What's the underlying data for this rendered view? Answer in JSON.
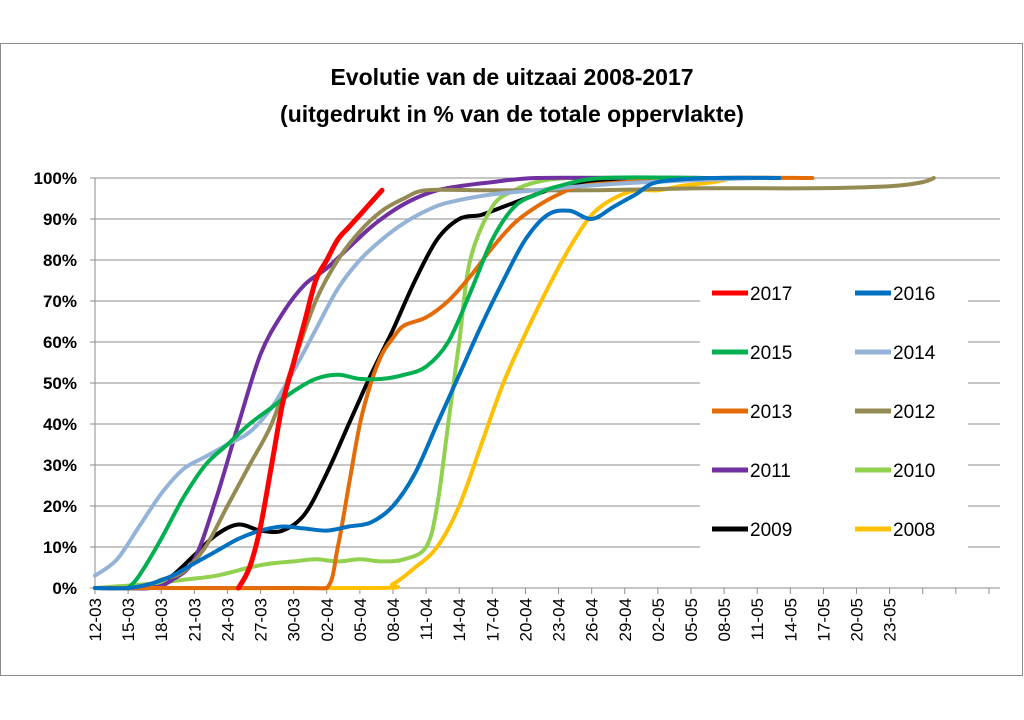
{
  "chart_data": {
    "type": "line",
    "title": "Evolutie van de uitzaai 2008-2017",
    "subtitle": "(uitgedrukt in % van de totale oppervlakte)",
    "xlabel": "",
    "ylabel": "",
    "x_tick_labels": [
      "12-03",
      "15-03",
      "18-03",
      "21-03",
      "24-03",
      "27-03",
      "30-03",
      "02-04",
      "05-04",
      "08-04",
      "11-04",
      "14-04",
      "17-04",
      "20-04",
      "23-04",
      "26-04",
      "29-04",
      "02-05",
      "05-05",
      "08-05",
      "11-05",
      "14-05",
      "17-05",
      "20-05",
      "23-05"
    ],
    "x_range_days": [
      0,
      82
    ],
    "x_origin_date": "12-03",
    "ylim": [
      0,
      100
    ],
    "y_ticks": [
      0,
      10,
      20,
      30,
      40,
      50,
      60,
      70,
      80,
      90,
      100
    ],
    "y_tick_labels": [
      "0%",
      "10%",
      "20%",
      "30%",
      "40%",
      "50%",
      "60%",
      "70%",
      "80%",
      "90%",
      "100%"
    ],
    "grid": "horizontal",
    "legend_position": "right",
    "series": [
      {
        "name": "2017",
        "color": "#ff0000",
        "width": 5,
        "points": [
          [
            13,
            0
          ],
          [
            14,
            5
          ],
          [
            15,
            15
          ],
          [
            16,
            30
          ],
          [
            17,
            45
          ],
          [
            18,
            55
          ],
          [
            19,
            65
          ],
          [
            20,
            75
          ],
          [
            21,
            80
          ],
          [
            22,
            85
          ],
          [
            23,
            88
          ],
          [
            24,
            91
          ],
          [
            25,
            94
          ],
          [
            26,
            97
          ]
        ]
      },
      {
        "name": "2016",
        "color": "#0070c0",
        "width": 4,
        "points": [
          [
            0,
            0
          ],
          [
            3,
            0
          ],
          [
            5,
            1
          ],
          [
            7,
            3
          ],
          [
            9,
            6
          ],
          [
            11,
            9
          ],
          [
            13,
            12
          ],
          [
            15,
            14
          ],
          [
            17,
            15
          ],
          [
            19,
            14.5
          ],
          [
            21,
            14
          ],
          [
            23,
            15
          ],
          [
            25,
            16
          ],
          [
            27,
            20
          ],
          [
            29,
            28
          ],
          [
            31,
            40
          ],
          [
            33,
            52
          ],
          [
            35,
            64
          ],
          [
            37,
            75
          ],
          [
            39,
            85
          ],
          [
            41,
            91
          ],
          [
            43,
            92
          ],
          [
            45,
            90
          ],
          [
            47,
            93
          ],
          [
            49,
            96
          ],
          [
            51,
            99
          ],
          [
            56,
            100
          ],
          [
            62,
            100
          ]
        ]
      },
      {
        "name": "2015",
        "color": "#00b050",
        "width": 4,
        "points": [
          [
            3,
            0
          ],
          [
            4,
            3
          ],
          [
            6,
            12
          ],
          [
            8,
            22
          ],
          [
            10,
            30
          ],
          [
            12,
            35
          ],
          [
            14,
            40
          ],
          [
            16,
            44
          ],
          [
            18,
            48
          ],
          [
            20,
            51
          ],
          [
            22,
            52
          ],
          [
            24,
            51
          ],
          [
            26,
            51
          ],
          [
            28,
            52
          ],
          [
            30,
            54
          ],
          [
            32,
            60
          ],
          [
            34,
            72
          ],
          [
            36,
            85
          ],
          [
            38,
            93
          ],
          [
            40,
            96
          ],
          [
            42,
            98
          ],
          [
            46,
            100
          ],
          [
            55,
            100
          ]
        ]
      },
      {
        "name": "2014",
        "color": "#95b3d7",
        "width": 4,
        "points": [
          [
            0,
            3
          ],
          [
            2,
            7
          ],
          [
            4,
            15
          ],
          [
            6,
            23
          ],
          [
            8,
            29
          ],
          [
            10,
            32
          ],
          [
            12,
            35
          ],
          [
            14,
            38
          ],
          [
            16,
            44
          ],
          [
            18,
            53
          ],
          [
            20,
            63
          ],
          [
            22,
            73
          ],
          [
            24,
            80
          ],
          [
            26,
            85
          ],
          [
            28,
            89
          ],
          [
            30,
            92
          ],
          [
            32,
            94
          ],
          [
            36,
            96
          ],
          [
            40,
            97
          ],
          [
            44,
            98
          ],
          [
            50,
            99
          ],
          [
            60,
            100
          ]
        ]
      },
      {
        "name": "2013",
        "color": "#e36c09",
        "width": 4,
        "points": [
          [
            0,
            0
          ],
          [
            18,
            0
          ],
          [
            21,
            0
          ],
          [
            22,
            10
          ],
          [
            23,
            25
          ],
          [
            24,
            40
          ],
          [
            25,
            50
          ],
          [
            26,
            57
          ],
          [
            27,
            61
          ],
          [
            28,
            64
          ],
          [
            30,
            66
          ],
          [
            32,
            70
          ],
          [
            34,
            76
          ],
          [
            36,
            83
          ],
          [
            38,
            89
          ],
          [
            40,
            93
          ],
          [
            42,
            96
          ],
          [
            44,
            98
          ],
          [
            48,
            99
          ],
          [
            56,
            100
          ],
          [
            65,
            100
          ]
        ]
      },
      {
        "name": "2012",
        "color": "#948a54",
        "width": 4,
        "points": [
          [
            0,
            0
          ],
          [
            4,
            0
          ],
          [
            6,
            2
          ],
          [
            8,
            4
          ],
          [
            10,
            10
          ],
          [
            12,
            20
          ],
          [
            14,
            30
          ],
          [
            16,
            40
          ],
          [
            18,
            55
          ],
          [
            20,
            70
          ],
          [
            22,
            80
          ],
          [
            24,
            87
          ],
          [
            26,
            92
          ],
          [
            28,
            95
          ],
          [
            30,
            97
          ],
          [
            35,
            97
          ],
          [
            45,
            97
          ],
          [
            55,
            97.5
          ],
          [
            65,
            97.5
          ],
          [
            72,
            98
          ],
          [
            75,
            99
          ],
          [
            76,
            100
          ]
        ]
      },
      {
        "name": "2011",
        "color": "#7030a0",
        "width": 4,
        "points": [
          [
            0,
            0
          ],
          [
            5,
            0
          ],
          [
            7,
            2
          ],
          [
            9,
            7
          ],
          [
            11,
            22
          ],
          [
            13,
            40
          ],
          [
            15,
            57
          ],
          [
            17,
            67
          ],
          [
            19,
            74
          ],
          [
            21,
            78
          ],
          [
            23,
            83
          ],
          [
            25,
            88
          ],
          [
            27,
            92
          ],
          [
            29,
            95
          ],
          [
            31,
            97
          ],
          [
            33,
            98
          ],
          [
            36,
            99
          ],
          [
            40,
            100
          ],
          [
            48,
            100
          ]
        ]
      },
      {
        "name": "2010",
        "color": "#92d050",
        "width": 4,
        "points": [
          [
            0,
            0
          ],
          [
            5,
            1
          ],
          [
            8,
            2
          ],
          [
            11,
            3
          ],
          [
            14,
            5
          ],
          [
            16,
            6
          ],
          [
            18,
            6.5
          ],
          [
            20,
            7
          ],
          [
            22,
            6.5
          ],
          [
            24,
            7
          ],
          [
            26,
            6.5
          ],
          [
            28,
            7
          ],
          [
            30,
            10
          ],
          [
            31,
            20
          ],
          [
            32,
            40
          ],
          [
            33,
            60
          ],
          [
            34,
            80
          ],
          [
            36,
            93
          ],
          [
            38,
            97
          ],
          [
            40,
            99
          ],
          [
            43,
            100
          ],
          [
            50,
            100
          ]
        ]
      },
      {
        "name": "2009",
        "color": "#000000",
        "width": 4,
        "points": [
          [
            0,
            0
          ],
          [
            5,
            0
          ],
          [
            7,
            3
          ],
          [
            9,
            8
          ],
          [
            11,
            13
          ],
          [
            13,
            15.5
          ],
          [
            15,
            14
          ],
          [
            17,
            14
          ],
          [
            19,
            18
          ],
          [
            21,
            28
          ],
          [
            23,
            40
          ],
          [
            25,
            52
          ],
          [
            27,
            63
          ],
          [
            29,
            75
          ],
          [
            31,
            85
          ],
          [
            33,
            90
          ],
          [
            35,
            91
          ],
          [
            37,
            93
          ],
          [
            39,
            95
          ],
          [
            41,
            97
          ],
          [
            43,
            98
          ],
          [
            45,
            99
          ],
          [
            49,
            100
          ],
          [
            56,
            100
          ]
        ]
      },
      {
        "name": "2008",
        "color": "#ffc000",
        "width": 4,
        "points": [
          [
            0,
            0
          ],
          [
            25,
            0
          ],
          [
            27,
            1
          ],
          [
            29,
            5
          ],
          [
            31,
            10
          ],
          [
            33,
            20
          ],
          [
            35,
            35
          ],
          [
            37,
            50
          ],
          [
            39,
            62
          ],
          [
            41,
            73
          ],
          [
            43,
            83
          ],
          [
            45,
            91
          ],
          [
            47,
            95
          ],
          [
            49,
            97
          ],
          [
            51,
            97
          ],
          [
            53,
            98
          ],
          [
            56,
            99
          ],
          [
            58,
            100
          ],
          [
            60,
            100
          ]
        ]
      }
    ]
  }
}
